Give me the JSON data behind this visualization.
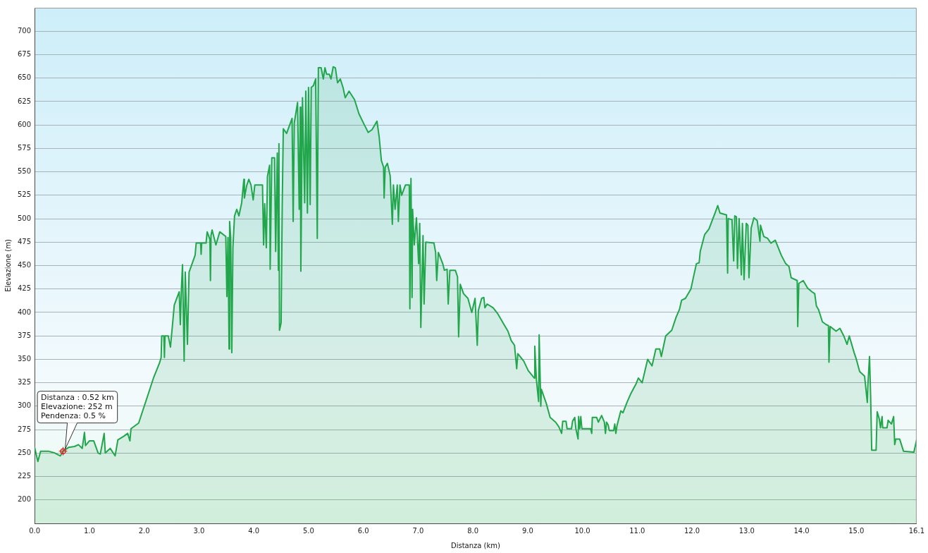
{
  "chart_data": {
    "type": "area",
    "xlabel": "Distanza (km)",
    "ylabel": "Elevazione (m)",
    "color": "#22a64b",
    "grid": "y",
    "xlim": [
      0,
      16.1
    ],
    "ylim": [
      175,
      725
    ],
    "xticks": [
      {
        "value": 0,
        "label": "0.0"
      },
      {
        "value": 1,
        "label": "1.0"
      },
      {
        "value": 2,
        "label": "2.0"
      },
      {
        "value": 3,
        "label": "3.0"
      },
      {
        "value": 4,
        "label": "4.0"
      },
      {
        "value": 5,
        "label": "5.0"
      },
      {
        "value": 6,
        "label": "6.0"
      },
      {
        "value": 7,
        "label": "7.0"
      },
      {
        "value": 8,
        "label": "8.0"
      },
      {
        "value": 9,
        "label": "9.0"
      },
      {
        "value": 10,
        "label": "10.0"
      },
      {
        "value": 11,
        "label": "11.0"
      },
      {
        "value": 12,
        "label": "12.0"
      },
      {
        "value": 13,
        "label": "13.0"
      },
      {
        "value": 14,
        "label": "14.0"
      },
      {
        "value": 15,
        "label": "15.0"
      },
      16.1
    ],
    "yticks": [
      200,
      225,
      250,
      275,
      300,
      325,
      350,
      375,
      400,
      425,
      450,
      475,
      500,
      525,
      550,
      575,
      600,
      625,
      650,
      675,
      700
    ],
    "x": [
      0,
      0.06,
      0.11,
      0.25,
      0.37,
      0.47,
      0.52,
      0.62,
      0.73,
      0.8,
      0.87,
      0.91,
      0.93,
      1.0,
      1.08,
      1.16,
      1.2,
      1.27,
      1.29,
      1.38,
      1.47,
      1.52,
      1.63,
      1.7,
      1.74,
      1.76,
      1.9,
      1.99,
      2.03,
      2.17,
      2.28,
      2.31,
      2.32,
      2.36,
      2.37,
      2.38,
      2.44,
      2.48,
      2.53,
      2.55,
      2.64,
      2.66,
      2.68,
      2.7,
      2.73,
      2.75,
      2.79,
      2.82,
      2.93,
      2.95,
      3.03,
      3.04,
      3.05,
      3.13,
      3.15,
      3.2,
      3.21,
      3.22,
      3.24,
      3.31,
      3.38,
      3.49,
      3.51,
      3.53,
      3.55,
      3.56,
      3.58,
      3.6,
      3.62,
      3.65,
      3.69,
      3.73,
      3.78,
      3.82,
      3.83,
      3.87,
      3.91,
      3.95,
      3.99,
      4.02,
      4.16,
      4.18,
      4.2,
      4.23,
      4.25,
      4.29,
      4.3,
      4.33,
      4.38,
      4.4,
      4.43,
      4.45,
      4.46,
      4.47,
      4.5,
      4.52,
      4.54,
      4.6,
      4.7,
      4.72,
      4.74,
      4.8,
      4.83,
      4.85,
      4.86,
      4.89,
      4.93,
      4.95,
      4.98,
      5.0,
      5.03,
      5.05,
      5.09,
      5.13,
      5.16,
      5.18,
      5.23,
      5.27,
      5.3,
      5.33,
      5.38,
      5.41,
      5.45,
      5.49,
      5.53,
      5.58,
      5.63,
      5.67,
      5.74,
      5.84,
      5.92,
      6.02,
      6.09,
      6.16,
      6.25,
      6.29,
      6.33,
      6.37,
      6.38,
      6.4,
      6.44,
      6.49,
      6.53,
      6.55,
      6.58,
      6.62,
      6.64,
      6.67,
      6.7,
      6.77,
      6.84,
      6.85,
      6.87,
      6.89,
      6.9,
      6.93,
      6.97,
      7.01,
      7.03,
      7.05,
      7.09,
      7.11,
      7.14,
      7.29,
      7.32,
      7.34,
      7.37,
      7.45,
      7.48,
      7.53,
      7.55,
      7.58,
      7.68,
      7.72,
      7.74,
      7.77,
      7.83,
      7.91,
      7.98,
      8.04,
      8.08,
      8.1,
      8.16,
      8.2,
      8.22,
      8.26,
      8.37,
      8.45,
      8.56,
      8.64,
      8.7,
      8.76,
      8.8,
      8.82,
      8.93,
      9.01,
      9.12,
      9.13,
      9.16,
      9.2,
      9.21,
      9.24,
      9.25,
      9.34,
      9.41,
      9.51,
      9.57,
      9.62,
      9.64,
      9.7,
      9.72,
      9.8,
      9.82,
      9.86,
      9.88,
      9.92,
      9.93,
      9.95,
      9.97,
      9.99,
      10.15,
      10.17,
      10.18,
      10.26,
      10.29,
      10.35,
      10.4,
      10.42,
      10.44,
      10.47,
      10.49,
      10.57,
      10.59,
      10.61,
      10.63,
      10.7,
      10.74,
      10.82,
      10.88,
      10.98,
      11.02,
      11.09,
      11.19,
      11.27,
      11.34,
      11.41,
      11.44,
      11.52,
      11.63,
      11.71,
      11.77,
      11.81,
      11.88,
      11.98,
      12.02,
      12.08,
      12.13,
      12.15,
      12.23,
      12.31,
      12.38,
      12.42,
      12.47,
      12.51,
      12.63,
      12.65,
      12.66,
      12.73,
      12.76,
      12.78,
      12.81,
      12.83,
      12.86,
      12.9,
      12.92,
      12.95,
      12.99,
      13.02,
      13.04,
      13.08,
      13.13,
      13.19,
      13.24,
      13.25,
      13.31,
      13.38,
      13.44,
      13.52,
      13.63,
      13.71,
      13.77,
      13.81,
      13.92,
      13.93,
      13.95,
      14.03,
      14.11,
      14.19,
      14.24,
      14.27,
      14.31,
      14.38,
      14.45,
      14.49,
      14.5,
      14.52,
      14.63,
      14.7,
      14.77,
      14.83,
      14.87,
      14.96,
      15.0,
      15.06,
      15.15,
      15.2,
      15.21,
      15.24,
      15.26,
      15.28,
      15.36,
      15.38,
      15.42,
      15.44,
      15.47,
      15.48,
      15.56,
      15.58,
      15.64,
      15.68,
      15.7,
      15.72,
      15.79,
      15.86,
      16.05,
      16.1
    ],
    "values": [
      256,
      241,
      252,
      252,
      250,
      247,
      252,
      256,
      257,
      259,
      255,
      272,
      258,
      263,
      263,
      250,
      249,
      271,
      250,
      255,
      247,
      264,
      268,
      271,
      263,
      276,
      282,
      298,
      305,
      330,
      346,
      352,
      375,
      375,
      352,
      375,
      375,
      363,
      395,
      408,
      422,
      387,
      425,
      451,
      348,
      443,
      366,
      443,
      461,
      474,
      474,
      462,
      474,
      474,
      486,
      478,
      434,
      482,
      488,
      472,
      486,
      481,
      417,
      480,
      361,
      497,
      480,
      357,
      469,
      503,
      510,
      503,
      517,
      542,
      522,
      535,
      542,
      536,
      520,
      536,
      536,
      472,
      516,
      469,
      545,
      557,
      446,
      565,
      565,
      465,
      570,
      445,
      580,
      381,
      389,
      513,
      596,
      591,
      607,
      497,
      602,
      624,
      510,
      619,
      444,
      629,
      517,
      636,
      506,
      640,
      515,
      640,
      642,
      649,
      479,
      661,
      661,
      649,
      661,
      654,
      654,
      649,
      662,
      661,
      645,
      649,
      640,
      629,
      636,
      627,
      612,
      600,
      592,
      595,
      604,
      587,
      562,
      555,
      522,
      555,
      559,
      546,
      494,
      536,
      510,
      536,
      497,
      536,
      525,
      536,
      536,
      404,
      543,
      416,
      510,
      472,
      501,
      452,
      495,
      384,
      482,
      409,
      475,
      474,
      464,
      434,
      464,
      452,
      445,
      446,
      409,
      445,
      445,
      438,
      374,
      430,
      420,
      415,
      400,
      415,
      365,
      402,
      415,
      416,
      405,
      409,
      405,
      399,
      388,
      380,
      370,
      365,
      340,
      356,
      348,
      338,
      330,
      364,
      328,
      305,
      376,
      300,
      318,
      303,
      288,
      283,
      278,
      271,
      284,
      284,
      276,
      276,
      284,
      288,
      276,
      265,
      289,
      276,
      289,
      276,
      276,
      271,
      288,
      288,
      283,
      290,
      283,
      271,
      283,
      280,
      274,
      274,
      281,
      271,
      279,
      295,
      293,
      305,
      313,
      324,
      330,
      325,
      350,
      343,
      361,
      361,
      353,
      375,
      381,
      395,
      403,
      413,
      415,
      425,
      436,
      452,
      453,
      465,
      483,
      489,
      500,
      506,
      514,
      506,
      504,
      442,
      500,
      499,
      455,
      503,
      502,
      447,
      500,
      440,
      495,
      435,
      495,
      493,
      437,
      490,
      501,
      498,
      476,
      493,
      481,
      479,
      474,
      477,
      461,
      452,
      449,
      437,
      434,
      385,
      431,
      434,
      426,
      422,
      420,
      407,
      403,
      390,
      387,
      386,
      347,
      385,
      380,
      383,
      375,
      366,
      375,
      357,
      350,
      337,
      332,
      304,
      322,
      353,
      312,
      253,
      253,
      294,
      286,
      277,
      289,
      277,
      277,
      285,
      281,
      289,
      259,
      265,
      265,
      252,
      251,
      264
    ],
    "annotations": [
      {
        "text": "Distanza : 0.52 km\nElevazione: 252 m\nPendenza: 0.5 %",
        "x": 0.52,
        "y": 252
      }
    ]
  }
}
